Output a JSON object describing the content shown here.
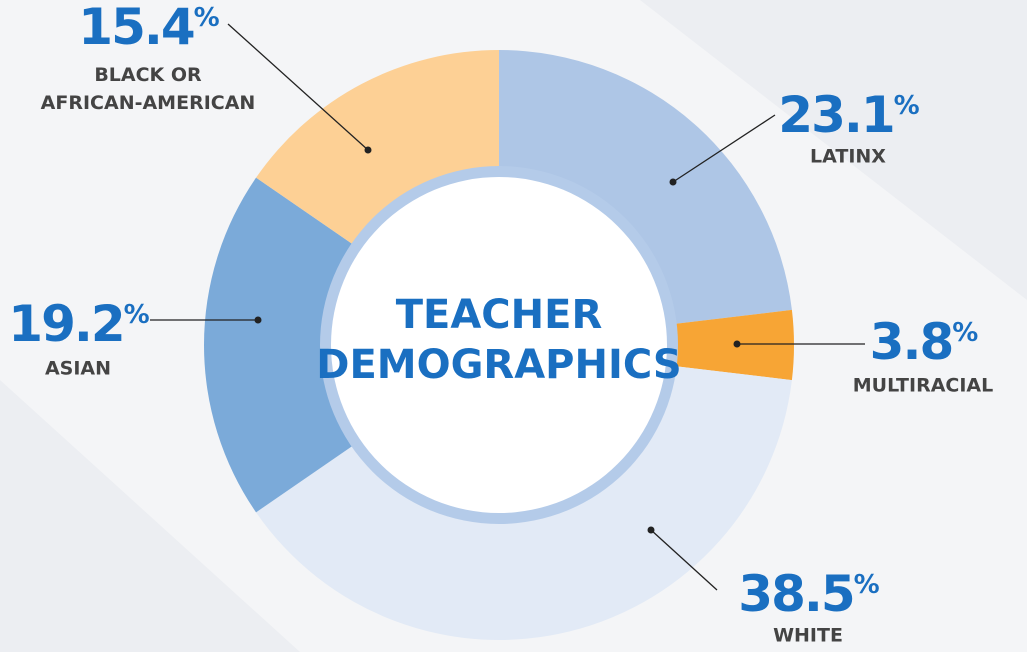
{
  "chart_data": {
    "type": "donut",
    "title": "TEACHER DEMOGRAPHICS",
    "categories": [
      "LATINX",
      "MULTIRACIAL",
      "WHITE",
      "ASIAN",
      "BLACK OR AFRICAN-AMERICAN"
    ],
    "values": [
      23.1,
      3.8,
      38.5,
      19.2,
      15.4
    ],
    "value_labels": [
      "23.1%",
      "3.8%",
      "38.5%",
      "19.2%",
      "15.4%"
    ],
    "colors": [
      "#aec6e6",
      "#f7a535",
      "#e2eaf6",
      "#7baad9",
      "#fdd095"
    ]
  }
}
